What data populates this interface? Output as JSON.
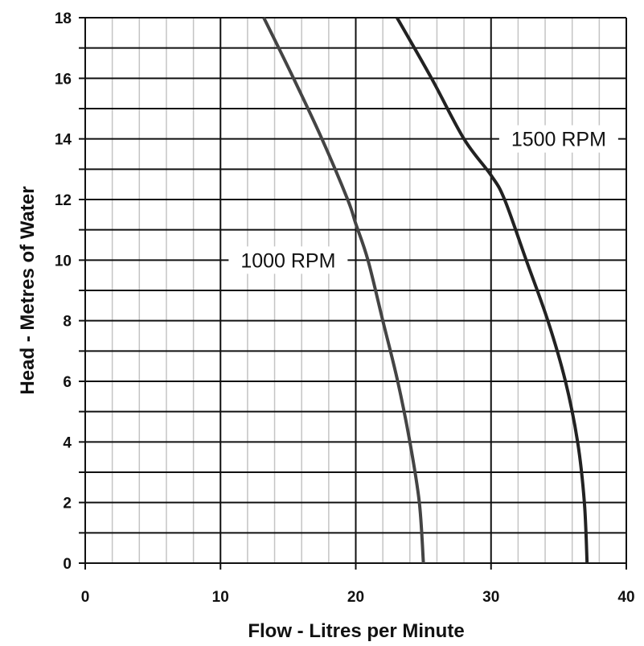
{
  "chart_data": {
    "type": "line",
    "title": "",
    "xlabel": "Flow - Litres per Minute",
    "ylabel": "Head - Metres of Water",
    "xlim": [
      0,
      40
    ],
    "ylim": [
      0,
      18
    ],
    "x_ticks": [
      "0",
      "10",
      "20",
      "30",
      "40"
    ],
    "y_ticks": [
      "0",
      "2",
      "4",
      "6",
      "8",
      "10",
      "12",
      "14",
      "16",
      "18"
    ],
    "grid": true,
    "series": [
      {
        "name": "1000 RPM",
        "color": "#444444",
        "x": [
          25.0,
          24.7,
          24.0,
          23.1,
          22.0,
          20.9,
          20.0,
          19.4,
          17.5,
          15.4,
          13.2
        ],
        "y": [
          0,
          2,
          4,
          6,
          8,
          10,
          11.2,
          12,
          14,
          16,
          18
        ]
      },
      {
        "name": "1500 RPM",
        "color": "#222222",
        "x": [
          37.1,
          36.9,
          36.4,
          35.5,
          34.2,
          32.6,
          31.0,
          30.0,
          28.0,
          25.6,
          23.05
        ],
        "y": [
          0,
          2,
          4,
          6,
          8,
          10,
          12,
          12.8,
          14,
          16,
          18
        ]
      }
    ],
    "annotations": [
      {
        "text": "1000 RPM",
        "series": 0,
        "x": 15,
        "y": 10
      },
      {
        "text": "1500 RPM",
        "series": 1,
        "x": 35,
        "y": 14
      }
    ]
  }
}
